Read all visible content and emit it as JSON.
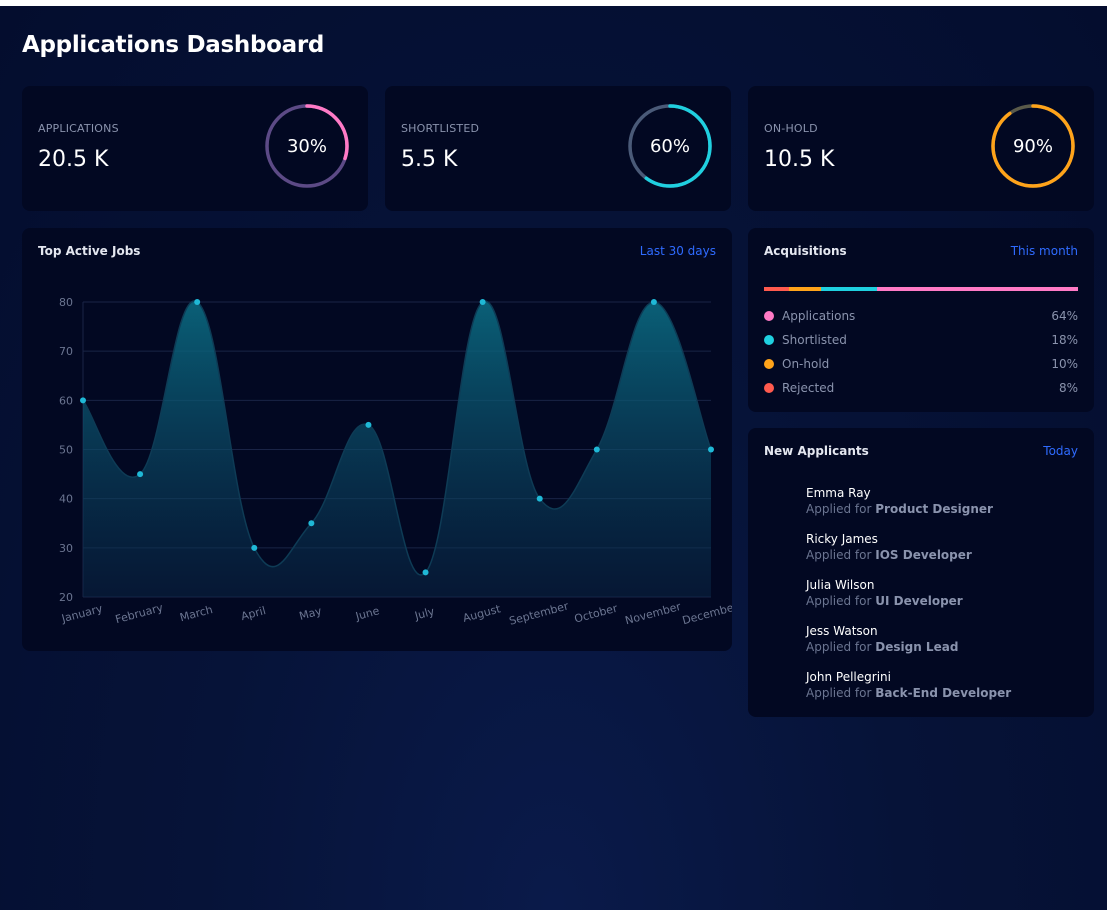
{
  "page_title": "Applications Dashboard",
  "stats": [
    {
      "label": "APPLICATIONS",
      "value": "20.5 K",
      "percent_text": "30%",
      "percent": 0.3,
      "color": "#ff7ac6",
      "track": "#5c4a86"
    },
    {
      "label": "SHORTLISTED",
      "value": "5.5 K",
      "percent_text": "60%",
      "percent": 0.6,
      "color": "#1fd0e0",
      "track": "#4a5a78"
    },
    {
      "label": "ON-HOLD",
      "value": "10.5 K",
      "percent_text": "90%",
      "percent": 0.9,
      "color": "#ffa31a",
      "track": "#5a5a4a"
    }
  ],
  "top_jobs": {
    "title": "Top Active Jobs",
    "range_link": "Last 30 days"
  },
  "chart_data": {
    "type": "area",
    "categories": [
      "January",
      "February",
      "March",
      "April",
      "May",
      "June",
      "July",
      "August",
      "September",
      "October",
      "November",
      "December"
    ],
    "values": [
      60,
      45,
      80,
      30,
      35,
      55,
      25,
      80,
      40,
      50,
      80,
      50
    ],
    "ylim": [
      20,
      80
    ],
    "yticks": [
      20,
      30,
      40,
      50,
      60,
      70,
      80
    ],
    "grid": true,
    "color": "#1fb8d6"
  },
  "acquisitions": {
    "title": "Acquisitions",
    "range_link": "This month",
    "items": [
      {
        "label": "Applications",
        "percent_text": "64%",
        "percent": 64,
        "color": "#ff7ac6"
      },
      {
        "label": "Shortlisted",
        "percent_text": "18%",
        "percent": 18,
        "color": "#1fd0e0"
      },
      {
        "label": "On-hold",
        "percent_text": "10%",
        "percent": 10,
        "color": "#ffa31a"
      },
      {
        "label": "Rejected",
        "percent_text": "8%",
        "percent": 8,
        "color": "#ff5a4e"
      }
    ]
  },
  "new_applicants": {
    "title": "New Applicants",
    "range_link": "Today",
    "applied_for_prefix": "Applied for",
    "items": [
      {
        "name": "Emma Ray",
        "role": "Product Designer"
      },
      {
        "name": "Ricky James",
        "role": "IOS Developer"
      },
      {
        "name": "Julia Wilson",
        "role": "UI Developer"
      },
      {
        "name": "Jess Watson",
        "role": "Design Lead"
      },
      {
        "name": "John Pellegrini",
        "role": "Back-End Developer"
      }
    ]
  }
}
